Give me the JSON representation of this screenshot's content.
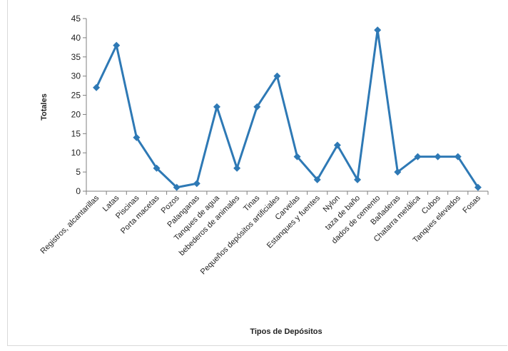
{
  "chart_data": {
    "type": "line",
    "title": "",
    "xlabel": "Tipos de Depósitos",
    "ylabel": "Totales",
    "ylim": [
      0,
      45
    ],
    "yticks": [
      0,
      5,
      10,
      15,
      20,
      25,
      30,
      35,
      40,
      45
    ],
    "grid": false,
    "legend": "none",
    "line_color": "#2e79b5",
    "categories": [
      "Registros, alcantarillas",
      "Latas",
      "Piscinas",
      "Porta macetas",
      "Pozos",
      "Palanganas",
      "Tanques de agua",
      "bebederos de animales",
      "Tinas",
      "Pequeños depósitos artificiales",
      "Carvelas",
      "Estanques y fuentes",
      "Nylon",
      "taza de baño",
      "dados de cemento",
      "Bañaderas",
      "Chatarra metálica",
      "Cubos",
      "Tanques elevados",
      "Fosas"
    ],
    "values": [
      27,
      38,
      14,
      6,
      1,
      2,
      22,
      6,
      22,
      30,
      9,
      3,
      12,
      3,
      42,
      5,
      9,
      9,
      9,
      1
    ]
  }
}
